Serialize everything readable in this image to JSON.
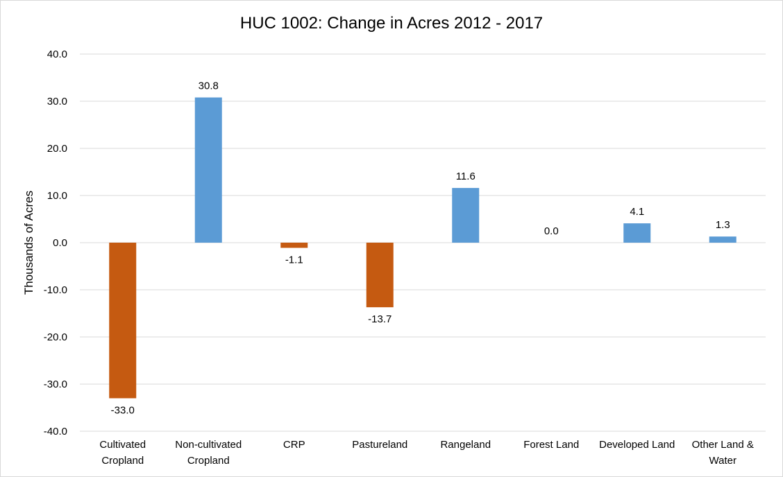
{
  "chart_data": {
    "type": "bar",
    "title": "HUC 1002: Change in Acres 2012 - 2017",
    "xlabel": "",
    "ylabel": "Thousands of Acres",
    "ylim": [
      -40,
      40
    ],
    "ytick_step": 10,
    "ytick_labels": [
      "40.0",
      "30.0",
      "20.0",
      "10.0",
      "0.0",
      "-10.0",
      "-20.0",
      "-30.0",
      "-40.0"
    ],
    "categories": [
      [
        "Cultivated",
        "Cropland"
      ],
      [
        "Non-cultivated",
        "Cropland"
      ],
      [
        "CRP"
      ],
      [
        "Pastureland"
      ],
      [
        "Rangeland"
      ],
      [
        "Forest Land"
      ],
      [
        "Developed Land"
      ],
      [
        "Other Land &",
        "Water"
      ]
    ],
    "values": [
      -33.0,
      30.8,
      -1.1,
      -13.7,
      11.6,
      0.0,
      4.1,
      1.3
    ],
    "data_labels": [
      "-33.0",
      "30.8",
      "-1.1",
      "-13.7",
      "11.6",
      "0.0",
      "4.1",
      "1.3"
    ],
    "colors": {
      "positive": "#5b9bd5",
      "negative": "#c55a11",
      "grid": "#d9d9d9"
    },
    "grid": true,
    "legend": "none"
  }
}
